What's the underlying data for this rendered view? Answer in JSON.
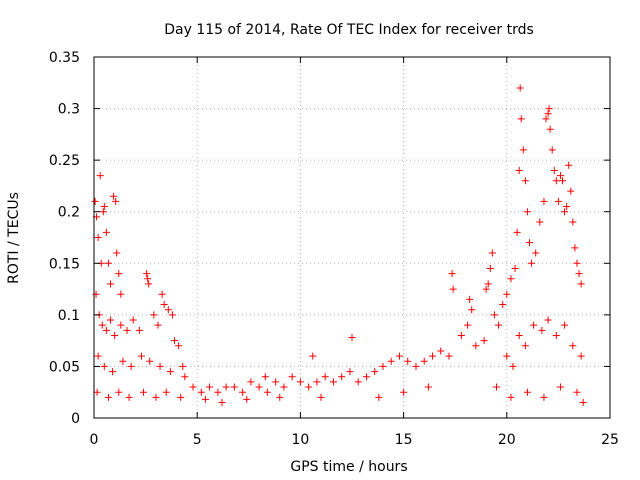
{
  "chart_data": {
    "type": "scatter",
    "title": "Day 115 of 2014, Rate Of TEC Index for receiver trds",
    "xlabel": "GPS time / hours",
    "ylabel": "ROTI / TECUs",
    "xlim": [
      0,
      25
    ],
    "ylim": [
      0,
      0.35
    ],
    "xticks": [
      0,
      5,
      10,
      15,
      20,
      25
    ],
    "xtick_labels": [
      "0",
      "5",
      "10",
      "15",
      "20",
      "25"
    ],
    "yticks": [
      0,
      0.05,
      0.1,
      0.15,
      0.2,
      0.25,
      0.3,
      0.35
    ],
    "ytick_labels": [
      "0",
      "0.05",
      "0.1",
      "0.15",
      "0.2",
      "0.25",
      "0.3",
      "0.35"
    ],
    "grid": true,
    "marker": "plus",
    "color": "#ff0000",
    "series": [
      {
        "points": [
          [
            0.05,
            0.21
          ],
          [
            0.12,
            0.195
          ],
          [
            0.2,
            0.175
          ],
          [
            0.3,
            0.235
          ],
          [
            0.35,
            0.15
          ],
          [
            0.45,
            0.2
          ],
          [
            0.5,
            0.205
          ],
          [
            0.6,
            0.18
          ],
          [
            0.7,
            0.15
          ],
          [
            0.8,
            0.13
          ],
          [
            0.95,
            0.215
          ],
          [
            1.05,
            0.21
          ],
          [
            1.1,
            0.16
          ],
          [
            1.2,
            0.14
          ],
          [
            1.3,
            0.12
          ],
          [
            0.1,
            0.12
          ],
          [
            0.25,
            0.1
          ],
          [
            0.4,
            0.09
          ],
          [
            0.6,
            0.085
          ],
          [
            0.8,
            0.095
          ],
          [
            1.0,
            0.08
          ],
          [
            1.3,
            0.09
          ],
          [
            1.6,
            0.085
          ],
          [
            1.9,
            0.095
          ],
          [
            2.2,
            0.085
          ],
          [
            2.55,
            0.14
          ],
          [
            2.6,
            0.135
          ],
          [
            2.65,
            0.13
          ],
          [
            2.9,
            0.1
          ],
          [
            3.1,
            0.09
          ],
          [
            3.3,
            0.12
          ],
          [
            3.4,
            0.11
          ],
          [
            3.6,
            0.105
          ],
          [
            3.8,
            0.1
          ],
          [
            3.9,
            0.075
          ],
          [
            4.1,
            0.07
          ],
          [
            4.3,
            0.05
          ],
          [
            0.2,
            0.06
          ],
          [
            0.5,
            0.05
          ],
          [
            0.9,
            0.045
          ],
          [
            1.4,
            0.055
          ],
          [
            1.8,
            0.05
          ],
          [
            2.3,
            0.06
          ],
          [
            2.7,
            0.055
          ],
          [
            3.2,
            0.05
          ],
          [
            3.7,
            0.045
          ],
          [
            4.4,
            0.04
          ],
          [
            0.15,
            0.025
          ],
          [
            0.7,
            0.02
          ],
          [
            1.2,
            0.025
          ],
          [
            1.7,
            0.02
          ],
          [
            2.4,
            0.025
          ],
          [
            3.0,
            0.02
          ],
          [
            3.5,
            0.025
          ],
          [
            4.2,
            0.02
          ],
          [
            4.8,
            0.03
          ],
          [
            5.2,
            0.025
          ],
          [
            5.6,
            0.03
          ],
          [
            6.0,
            0.025
          ],
          [
            6.4,
            0.03
          ],
          [
            6.8,
            0.03
          ],
          [
            7.2,
            0.025
          ],
          [
            7.6,
            0.035
          ],
          [
            8.0,
            0.03
          ],
          [
            8.4,
            0.025
          ],
          [
            8.8,
            0.035
          ],
          [
            9.2,
            0.03
          ],
          [
            9.6,
            0.04
          ],
          [
            10.0,
            0.035
          ],
          [
            10.4,
            0.03
          ],
          [
            10.8,
            0.035
          ],
          [
            11.2,
            0.04
          ],
          [
            11.6,
            0.035
          ],
          [
            12.0,
            0.04
          ],
          [
            12.4,
            0.045
          ],
          [
            12.5,
            0.078
          ],
          [
            12.8,
            0.035
          ],
          [
            13.2,
            0.04
          ],
          [
            13.6,
            0.045
          ],
          [
            14.0,
            0.05
          ],
          [
            14.4,
            0.055
          ],
          [
            14.8,
            0.06
          ],
          [
            15.2,
            0.055
          ],
          [
            15.6,
            0.05
          ],
          [
            16.0,
            0.055
          ],
          [
            16.4,
            0.06
          ],
          [
            16.8,
            0.065
          ],
          [
            17.2,
            0.06
          ],
          [
            17.35,
            0.14
          ],
          [
            17.4,
            0.125
          ],
          [
            17.8,
            0.08
          ],
          [
            18.1,
            0.09
          ],
          [
            18.2,
            0.115
          ],
          [
            18.3,
            0.105
          ],
          [
            18.5,
            0.07
          ],
          [
            18.9,
            0.075
          ],
          [
            19.0,
            0.125
          ],
          [
            19.1,
            0.13
          ],
          [
            19.2,
            0.145
          ],
          [
            19.3,
            0.16
          ],
          [
            19.4,
            0.1
          ],
          [
            19.6,
            0.09
          ],
          [
            19.8,
            0.11
          ],
          [
            20.0,
            0.12
          ],
          [
            20.2,
            0.135
          ],
          [
            20.4,
            0.145
          ],
          [
            20.5,
            0.18
          ],
          [
            20.6,
            0.24
          ],
          [
            20.65,
            0.32
          ],
          [
            20.7,
            0.29
          ],
          [
            20.8,
            0.26
          ],
          [
            20.9,
            0.23
          ],
          [
            21.0,
            0.2
          ],
          [
            21.1,
            0.17
          ],
          [
            21.2,
            0.15
          ],
          [
            21.4,
            0.16
          ],
          [
            21.6,
            0.19
          ],
          [
            21.8,
            0.21
          ],
          [
            21.9,
            0.29
          ],
          [
            22.0,
            0.295
          ],
          [
            22.05,
            0.3
          ],
          [
            22.1,
            0.28
          ],
          [
            22.2,
            0.26
          ],
          [
            22.3,
            0.24
          ],
          [
            22.4,
            0.23
          ],
          [
            22.5,
            0.21
          ],
          [
            22.6,
            0.235
          ],
          [
            22.7,
            0.23
          ],
          [
            22.8,
            0.2
          ],
          [
            22.9,
            0.205
          ],
          [
            23.0,
            0.245
          ],
          [
            23.1,
            0.22
          ],
          [
            23.2,
            0.19
          ],
          [
            23.3,
            0.165
          ],
          [
            23.4,
            0.15
          ],
          [
            23.5,
            0.14
          ],
          [
            23.6,
            0.13
          ],
          [
            20.0,
            0.06
          ],
          [
            20.3,
            0.05
          ],
          [
            20.6,
            0.08
          ],
          [
            20.9,
            0.07
          ],
          [
            21.3,
            0.09
          ],
          [
            21.7,
            0.085
          ],
          [
            22.0,
            0.095
          ],
          [
            22.4,
            0.08
          ],
          [
            22.8,
            0.09
          ],
          [
            23.2,
            0.07
          ],
          [
            23.6,
            0.06
          ],
          [
            19.5,
            0.03
          ],
          [
            20.2,
            0.02
          ],
          [
            21.0,
            0.025
          ],
          [
            21.8,
            0.02
          ],
          [
            22.6,
            0.03
          ],
          [
            23.4,
            0.025
          ],
          [
            23.7,
            0.015
          ],
          [
            16.2,
            0.03
          ],
          [
            15.0,
            0.025
          ],
          [
            13.8,
            0.02
          ],
          [
            11.0,
            0.02
          ],
          [
            9.0,
            0.02
          ],
          [
            7.4,
            0.018
          ],
          [
            6.2,
            0.015
          ],
          [
            5.4,
            0.018
          ],
          [
            10.6,
            0.06
          ],
          [
            8.3,
            0.04
          ]
        ]
      }
    ]
  }
}
